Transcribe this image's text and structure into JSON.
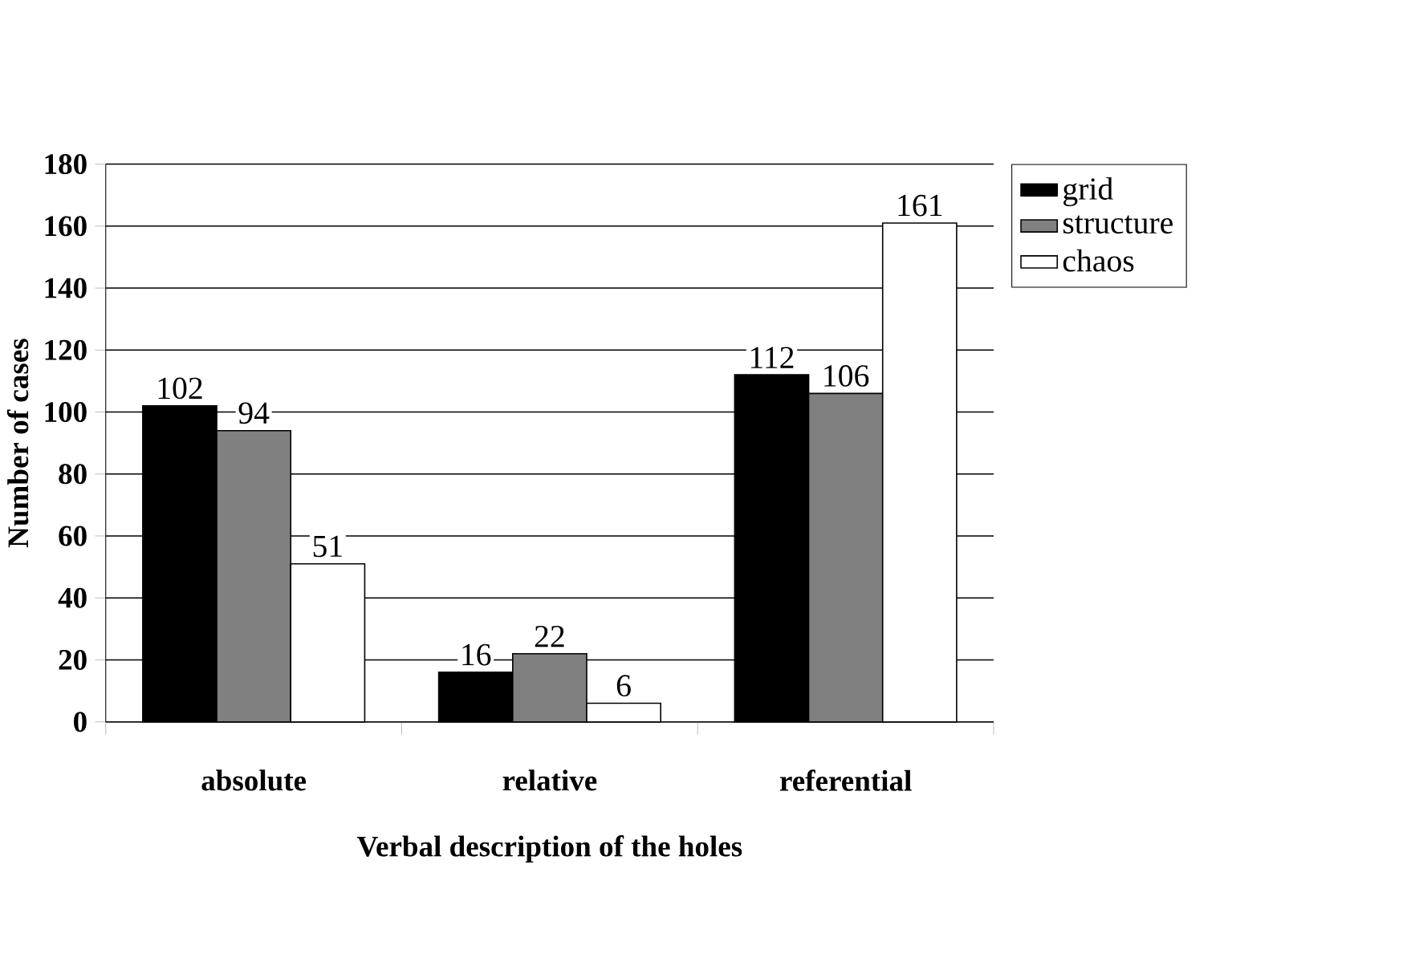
{
  "chart_data": {
    "type": "bar",
    "xlabel": "Verbal description of the holes",
    "ylabel": "Number of cases",
    "categories": [
      "absolute",
      "relative",
      "referential"
    ],
    "series": [
      {
        "name": "grid",
        "color": "#000000",
        "values": [
          102,
          16,
          112
        ]
      },
      {
        "name": "structure",
        "color": "#808080",
        "values": [
          94,
          22,
          106
        ]
      },
      {
        "name": "chaos",
        "color": "#ffffff",
        "values": [
          51,
          6,
          161
        ]
      }
    ],
    "ylim": [
      0,
      180
    ],
    "yticks": [
      0,
      20,
      40,
      60,
      80,
      100,
      120,
      140,
      160,
      180
    ],
    "grid": "y",
    "legend": "right",
    "data_labels": true
  }
}
